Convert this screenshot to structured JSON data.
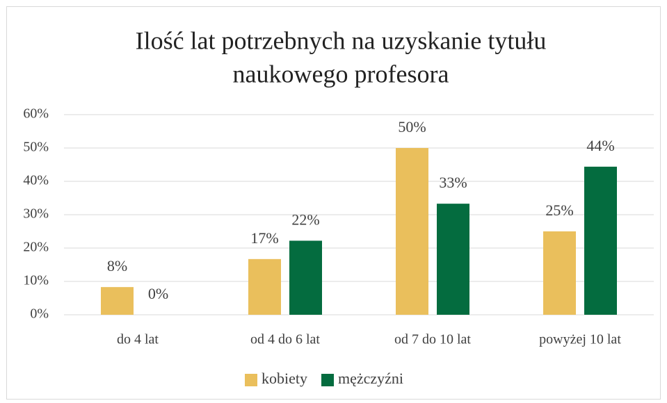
{
  "chart_data": {
    "type": "bar",
    "title": [
      "Ilość lat potrzebnych na uzyskanie tytułu",
      "naukowego profesora"
    ],
    "categories": [
      "do 4 lat",
      "od 4 do 6 lat",
      "od 7 do 10 lat",
      "powyżej 10 lat"
    ],
    "series": [
      {
        "name": "kobiety",
        "color": "#eabf5c",
        "values": [
          8.3,
          16.7,
          50,
          25
        ],
        "value_labels": [
          "8%",
          "17%",
          "50%",
          "25%"
        ]
      },
      {
        "name": "mężczyźni",
        "color": "#046c3f",
        "values": [
          0,
          22.2,
          33.3,
          44.4
        ],
        "value_labels": [
          "0%",
          "22%",
          "33%",
          "44%"
        ]
      }
    ],
    "ylim": [
      0,
      60
    ],
    "yticks": [
      {
        "value": 0,
        "label": "0%"
      },
      {
        "value": 10,
        "label": "10%"
      },
      {
        "value": 20,
        "label": "20%"
      },
      {
        "value": 30,
        "label": "30%"
      },
      {
        "value": 40,
        "label": "40%"
      },
      {
        "value": 50,
        "label": "50%"
      },
      {
        "value": 60,
        "label": "60%"
      }
    ],
    "grid": true,
    "legend": "bottom"
  }
}
